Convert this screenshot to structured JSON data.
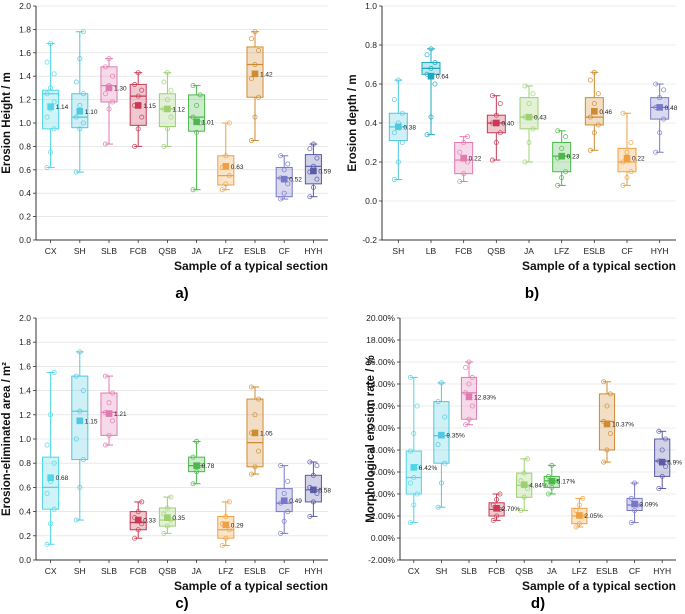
{
  "chart_data": [
    {
      "type": "box",
      "panel_label": "a)",
      "ylabel": "Erosion Height / m",
      "xlabel": "Sample of a typical section",
      "ylim": [
        0.0,
        2.0
      ],
      "ytick_labels": [
        "0.0",
        "0.2",
        "0.4",
        "0.6",
        "0.8",
        "1.0",
        "1.2",
        "1.4",
        "1.6",
        "1.8",
        "2.0"
      ],
      "categories": [
        "CX",
        "SH",
        "SLB",
        "FCB",
        "QSB",
        "JA",
        "LFZ",
        "ESLB",
        "CF",
        "HYH"
      ],
      "colors": [
        "#4fd6e8",
        "#4fc8e0",
        "#e07ab0",
        "#c83a55",
        "#9cd070",
        "#4cb84c",
        "#f0a040",
        "#d08a30",
        "#7878c8",
        "#5a5aa8"
      ],
      "means": [
        1.14,
        1.1,
        1.3,
        1.15,
        1.12,
        1.01,
        0.63,
        1.42,
        0.52,
        0.59
      ],
      "mean_labels": [
        "1.14",
        "1.10",
        "1.30",
        "1.15",
        "1.12",
        "1.01",
        "0.63",
        "1.42",
        "0.52",
        "0.59"
      ],
      "q1": [
        0.95,
        0.96,
        1.18,
        0.98,
        0.97,
        0.93,
        0.47,
        1.22,
        0.37,
        0.48
      ],
      "median": [
        1.25,
        1.05,
        1.32,
        1.23,
        1.12,
        1.05,
        0.55,
        1.5,
        0.53,
        0.63
      ],
      "q3": [
        1.28,
        1.25,
        1.48,
        1.33,
        1.25,
        1.24,
        0.72,
        1.65,
        0.62,
        0.73
      ],
      "whisker_low": [
        0.62,
        0.58,
        0.82,
        0.8,
        0.8,
        0.43,
        0.43,
        0.85,
        0.35,
        0.37
      ],
      "whisker_high": [
        1.68,
        1.78,
        1.55,
        1.43,
        1.43,
        1.32,
        1.0,
        1.78,
        0.72,
        0.82
      ],
      "points": [
        [
          0.62,
          0.75,
          0.95,
          1.05,
          1.12,
          1.18,
          1.25,
          1.3,
          1.42,
          1.52,
          1.68
        ],
        [
          0.58,
          0.95,
          1.0,
          1.05,
          1.15,
          1.25,
          1.35,
          1.55,
          1.78
        ],
        [
          0.82,
          1.12,
          1.18,
          1.25,
          1.32,
          1.4,
          1.48,
          1.55
        ],
        [
          0.8,
          0.95,
          1.05,
          1.15,
          1.23,
          1.28,
          1.33,
          1.43
        ],
        [
          0.8,
          0.95,
          1.05,
          1.12,
          1.2,
          1.28,
          1.35,
          1.43
        ],
        [
          0.43,
          0.92,
          1.0,
          1.05,
          1.15,
          1.24,
          1.32
        ],
        [
          0.43,
          0.48,
          0.55,
          0.62,
          0.72,
          1.0
        ],
        [
          0.85,
          1.05,
          1.22,
          1.38,
          1.5,
          1.62,
          1.72,
          1.78
        ],
        [
          0.35,
          0.4,
          0.48,
          0.53,
          0.6,
          0.65,
          0.72
        ],
        [
          0.37,
          0.45,
          0.52,
          0.58,
          0.63,
          0.7,
          0.78,
          0.82
        ]
      ]
    },
    {
      "type": "box",
      "panel_label": "b)",
      "ylabel": "Erosion depth / m",
      "xlabel": "Sample of a typical section",
      "ylim": [
        -0.2,
        1.0
      ],
      "ytick_labels": [
        "-0.2",
        "0.0",
        "0.2",
        "0.4",
        "0.6",
        "0.8",
        "1.0"
      ],
      "categories": [
        "SH",
        "LB",
        "FCB",
        "QSB",
        "JA",
        "LFZ",
        "ESLB",
        "CF",
        "HYH"
      ],
      "colors": [
        "#4fc8e0",
        "#1aa8c0",
        "#e07ab0",
        "#c83a55",
        "#9cd070",
        "#4cb84c",
        "#d08a30",
        "#f0a040",
        "#7878c8"
      ],
      "means": [
        0.38,
        0.64,
        0.22,
        0.4,
        0.43,
        0.23,
        0.46,
        0.22,
        0.48
      ],
      "mean_labels": [
        "0.38",
        "0.64",
        "0.22",
        "0.40",
        "0.43",
        "0.23",
        "0.46",
        "0.22",
        "0.48"
      ],
      "q1": [
        0.31,
        0.65,
        0.14,
        0.35,
        0.37,
        0.15,
        0.39,
        0.15,
        0.42
      ],
      "median": [
        0.38,
        0.68,
        0.21,
        0.4,
        0.43,
        0.23,
        0.43,
        0.2,
        0.48
      ],
      "q3": [
        0.45,
        0.71,
        0.3,
        0.44,
        0.53,
        0.3,
        0.53,
        0.27,
        0.53
      ],
      "whisker_low": [
        0.11,
        0.34,
        0.1,
        0.21,
        0.2,
        0.08,
        0.26,
        0.08,
        0.25
      ],
      "whisker_high": [
        0.62,
        0.78,
        0.33,
        0.54,
        0.59,
        0.36,
        0.66,
        0.45,
        0.6
      ],
      "points": [
        [
          0.11,
          0.2,
          0.3,
          0.35,
          0.4,
          0.45,
          0.52,
          0.62
        ],
        [
          0.34,
          0.43,
          0.6,
          0.65,
          0.68,
          0.71,
          0.75,
          0.78
        ],
        [
          0.1,
          0.14,
          0.2,
          0.25,
          0.3,
          0.33
        ],
        [
          0.21,
          0.3,
          0.35,
          0.4,
          0.44,
          0.5,
          0.54
        ],
        [
          0.2,
          0.3,
          0.37,
          0.43,
          0.5,
          0.55,
          0.59
        ],
        [
          0.08,
          0.12,
          0.15,
          0.22,
          0.27,
          0.33,
          0.36
        ],
        [
          0.26,
          0.35,
          0.39,
          0.43,
          0.5,
          0.55,
          0.62,
          0.66
        ],
        [
          0.08,
          0.12,
          0.15,
          0.2,
          0.25,
          0.3,
          0.45
        ],
        [
          0.25,
          0.35,
          0.42,
          0.48,
          0.53,
          0.57,
          0.6
        ]
      ]
    },
    {
      "type": "box",
      "panel_label": "c)",
      "ylabel": "Erosion-eliminated area / m²",
      "xlabel": "Sample of a typical section",
      "ylim": [
        0.0,
        2.0
      ],
      "ytick_labels": [
        "0.0",
        "0.2",
        "0.4",
        "0.6",
        "0.8",
        "1.0",
        "1.2",
        "1.4",
        "1.6",
        "1.8",
        "2.0"
      ],
      "categories": [
        "CX",
        "SH",
        "SLB",
        "FCB",
        "QSB",
        "JA",
        "LFZ",
        "ESLB",
        "CF",
        "HYH"
      ],
      "colors": [
        "#4fd6e8",
        "#4fc8e0",
        "#e07ab0",
        "#c83a55",
        "#9cd070",
        "#4cb84c",
        "#f0a040",
        "#d08a30",
        "#7878c8",
        "#5a5aa8"
      ],
      "means": [
        0.68,
        1.15,
        1.21,
        0.33,
        0.35,
        0.78,
        0.29,
        1.05,
        0.49,
        0.58
      ],
      "mean_labels": [
        "0.68",
        "1.15",
        "1.21",
        "0.33",
        "0.35",
        "0.78",
        "0.29",
        "1.05",
        "0.49",
        "0.58"
      ],
      "q1": [
        0.42,
        0.83,
        1.03,
        0.25,
        0.28,
        0.73,
        0.18,
        0.77,
        0.4,
        0.48
      ],
      "median": [
        0.6,
        1.23,
        1.22,
        0.31,
        0.33,
        0.78,
        0.25,
        0.97,
        0.47,
        0.58
      ],
      "q3": [
        0.85,
        1.52,
        1.38,
        0.4,
        0.43,
        0.85,
        0.36,
        1.33,
        0.59,
        0.7
      ],
      "whisker_low": [
        0.13,
        0.33,
        0.95,
        0.18,
        0.22,
        0.63,
        0.12,
        0.71,
        0.22,
        0.36
      ],
      "whisker_high": [
        1.55,
        1.72,
        1.52,
        0.48,
        0.52,
        0.98,
        0.48,
        1.43,
        0.78,
        0.81
      ],
      "points": [
        [
          0.13,
          0.3,
          0.42,
          0.55,
          0.65,
          0.8,
          0.95,
          1.2,
          1.55
        ],
        [
          0.33,
          0.6,
          0.83,
          1.0,
          1.23,
          1.4,
          1.52,
          1.72
        ],
        [
          0.95,
          1.03,
          1.15,
          1.22,
          1.3,
          1.38,
          1.52
        ],
        [
          0.18,
          0.25,
          0.3,
          0.35,
          0.4,
          0.48
        ],
        [
          0.22,
          0.28,
          0.33,
          0.38,
          0.43,
          0.52
        ],
        [
          0.63,
          0.73,
          0.78,
          0.85,
          0.98
        ],
        [
          0.12,
          0.18,
          0.25,
          0.3,
          0.36,
          0.48
        ],
        [
          0.71,
          0.77,
          0.9,
          1.05,
          1.2,
          1.33,
          1.43
        ],
        [
          0.22,
          0.32,
          0.4,
          0.47,
          0.55,
          0.65,
          0.78
        ],
        [
          0.36,
          0.48,
          0.55,
          0.6,
          0.7,
          0.78,
          0.81
        ]
      ]
    },
    {
      "type": "box",
      "panel_label": "d)",
      "ylabel": "Morphological erosion rate / %",
      "xlabel": "Sample of a typical section",
      "ylim": [
        -2.0,
        20.0
      ],
      "ytick_labels": [
        "-2.00%",
        "0.00%",
        "2.00%",
        "4.00%",
        "6.00%",
        "8.00%",
        "10.00%",
        "12.00%",
        "14.00%",
        "16.00%",
        "18.00%",
        "20.00%"
      ],
      "categories": [
        "CX",
        "SH",
        "SLB",
        "FCB",
        "QSB",
        "JA",
        "LFZ",
        "ESLB",
        "CF",
        "HYH"
      ],
      "colors": [
        "#4fd6e8",
        "#4fc8e0",
        "#e07ab0",
        "#c83a55",
        "#9cd070",
        "#4cb84c",
        "#f0a040",
        "#d08a30",
        "#7878c8",
        "#5a5aa8"
      ],
      "means": [
        6.42,
        9.35,
        12.83,
        2.7,
        4.84,
        5.17,
        2.05,
        10.37,
        3.09,
        6.9
      ],
      "mean_labels": [
        "6.42%",
        "9.35%",
        "12.83%",
        "2.70%",
        "4.84%",
        "5.17%",
        "2.05%",
        "10.37%",
        "3.09%",
        "6.9%"
      ],
      "q1": [
        4.0,
        6.8,
        10.8,
        2.0,
        3.7,
        4.6,
        1.3,
        8.0,
        2.5,
        5.6
      ],
      "median": [
        5.5,
        9.3,
        13.2,
        2.6,
        4.8,
        5.2,
        2.0,
        10.6,
        3.0,
        7.0
      ],
      "q3": [
        7.9,
        12.4,
        14.6,
        3.2,
        5.9,
        5.6,
        2.7,
        13.1,
        3.6,
        9.0
      ],
      "whisker_low": [
        1.4,
        2.8,
        10.3,
        1.6,
        2.5,
        4.0,
        1.0,
        6.9,
        1.4,
        4.5
      ],
      "whisker_high": [
        14.6,
        14.1,
        16.0,
        4.0,
        7.2,
        6.6,
        3.6,
        14.2,
        5.0,
        9.7
      ],
      "points": [
        [
          1.4,
          3.0,
          4.0,
          5.0,
          5.5,
          6.5,
          7.9,
          9.5,
          12.0,
          14.6
        ],
        [
          2.8,
          5.0,
          6.8,
          8.5,
          9.3,
          11.0,
          12.4,
          14.1
        ],
        [
          10.3,
          10.8,
          12.0,
          13.2,
          14.0,
          14.6,
          15.5,
          16.0
        ],
        [
          1.6,
          2.0,
          2.6,
          3.0,
          3.5,
          4.0
        ],
        [
          2.5,
          3.7,
          4.5,
          5.2,
          5.9,
          7.2
        ],
        [
          4.0,
          4.6,
          5.2,
          5.6,
          6.6
        ],
        [
          1.0,
          1.3,
          2.0,
          2.5,
          3.0,
          3.6
        ],
        [
          6.9,
          8.0,
          9.5,
          10.6,
          12.0,
          13.1,
          14.2
        ],
        [
          1.4,
          2.5,
          3.0,
          3.6,
          5.0
        ],
        [
          4.5,
          5.6,
          6.5,
          7.0,
          8.0,
          9.0,
          9.7
        ]
      ]
    }
  ]
}
